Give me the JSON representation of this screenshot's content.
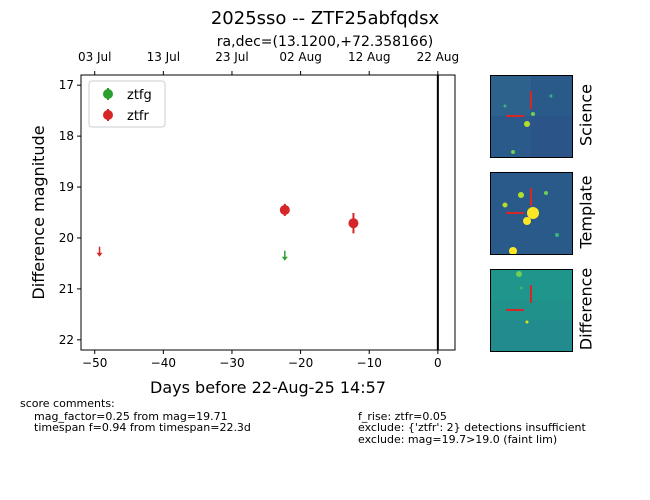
{
  "title": "2025sso -- ZTF25abfqdsx",
  "chart_data": {
    "type": "scatter",
    "title": "ra,dec=(13.1200,+72.358166)",
    "xlabel": "Days before 22-Aug-25 14:57",
    "ylabel": "Difference magnitude",
    "xlim": [
      -52,
      2.5
    ],
    "ylim": [
      22.2,
      16.8
    ],
    "y_inverted": true,
    "x_ticks": [
      -50,
      -40,
      -30,
      -20,
      -10,
      0
    ],
    "x_tick_labels": [
      "−50",
      "−40",
      "−30",
      "−20",
      "−10",
      "0"
    ],
    "y_ticks": [
      17,
      18,
      19,
      20,
      21,
      22
    ],
    "top_axis_ticks": [
      -50,
      -40,
      -30,
      -20,
      -10,
      0
    ],
    "top_axis_labels": [
      "03 Jul",
      "13 Jul",
      "23 Jul",
      "02 Aug",
      "12 Aug",
      "22 Aug"
    ],
    "vertical_line_x": 0,
    "legend_position": "top-left",
    "grid": false,
    "series": [
      {
        "name": "ztfg",
        "color": "#2ca02c",
        "detections": [],
        "upper_limits": [
          {
            "x": -22.3,
            "y": 20.35
          }
        ]
      },
      {
        "name": "ztfr",
        "color": "#d62728",
        "detections": [
          {
            "x": -22.3,
            "y": 19.45,
            "err": 0.12
          },
          {
            "x": -12.3,
            "y": 19.71,
            "err": 0.2
          }
        ],
        "upper_limits": [
          {
            "x": -49.3,
            "y": 20.27
          }
        ]
      }
    ]
  },
  "stamps": [
    {
      "label": "Science",
      "color": "#2a5a8a"
    },
    {
      "label": "Template",
      "color": "#2a5a8a"
    },
    {
      "label": "Difference",
      "color": "#21918c"
    }
  ],
  "score_comments": {
    "header": "score comments:",
    "left": [
      "mag_factor=0.25 from mag=19.71",
      "timespan f=0.94 from timespan=22.3d"
    ],
    "right": [
      "f_rise: ztfr=0.05",
      "exclude: {'ztfr': 2} detections insufficient",
      "exclude: mag=19.7>19.0 (faint lim)"
    ]
  }
}
